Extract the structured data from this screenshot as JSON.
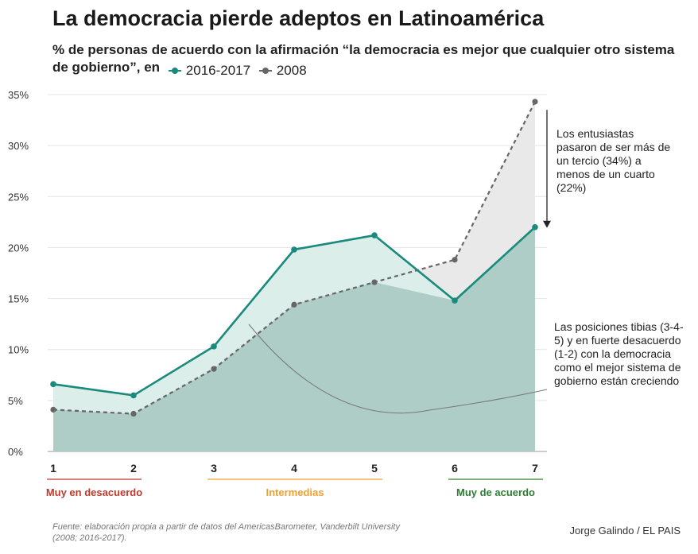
{
  "title": "La democracia pierde adeptos en Latinoamérica",
  "subtitle": "% de personas de acuerdo con la afirmación “la democracia es mejor que cualquier otro sistema de gobierno”, en",
  "chart_data": {
    "type": "line",
    "x": [
      1,
      2,
      3,
      4,
      5,
      6,
      7
    ],
    "ylim": [
      0,
      35
    ],
    "yticks": [
      "0%",
      "5%",
      "10%",
      "15%",
      "20%",
      "25%",
      "30%",
      "35%"
    ],
    "ytick_values": [
      0,
      5,
      10,
      15,
      20,
      25,
      30,
      35
    ],
    "series": [
      {
        "name": "2016-2017",
        "values": [
          6.6,
          5.5,
          10.3,
          19.8,
          21.2,
          14.8,
          22.0
        ],
        "color": "#1a8a7d",
        "style": "solid"
      },
      {
        "name": "2008",
        "values": [
          4.1,
          3.7,
          8.1,
          14.4,
          16.6,
          18.8,
          34.3
        ],
        "color": "#666666",
        "style": "dashed"
      }
    ],
    "groups": [
      {
        "label": "Muy en desacuerdo",
        "from": 1,
        "to": 2,
        "color": "#c0392b"
      },
      {
        "label": "Intermedias",
        "from": 3,
        "to": 5,
        "color": "#f0a030"
      },
      {
        "label": "Muy de acuerdo",
        "from": 6,
        "to": 7,
        "color": "#2e7d32"
      }
    ],
    "annotations": [
      "Los entusiastas pasaron de ser más de un tercio (34%) a menos de un cuarto (22%)",
      "Las posiciones tibias (3-4-5) y en fuerte desacuerdo (1-2) con la democracia como el mejor sistema de gobierno están creciendo"
    ]
  },
  "source": "Fuente: elaboración propia a partir de datos del AmericasBarometer, Vanderbilt University (2008; 2016-2017).",
  "credit": "Jorge Galindo / EL PAIS"
}
